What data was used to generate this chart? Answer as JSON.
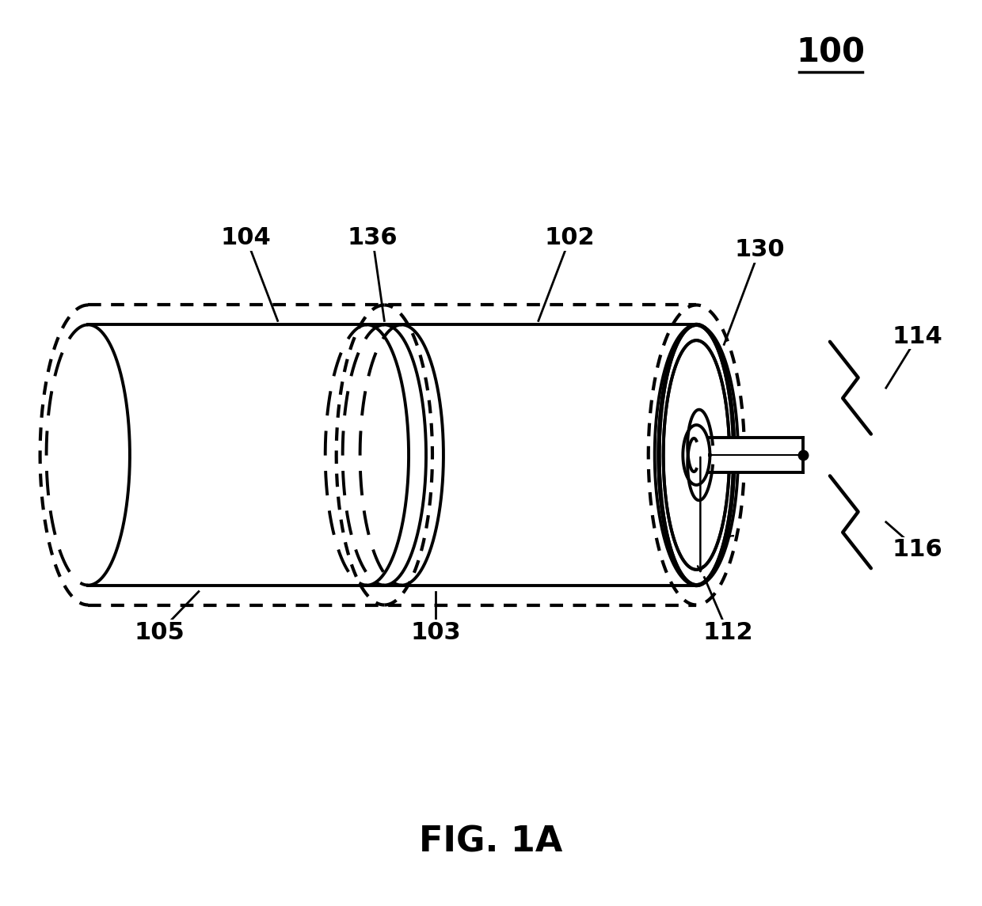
{
  "title": "FIG. 1A",
  "ref_number": "100",
  "background_color": "#ffffff",
  "fig_width": 12.4,
  "fig_height": 11.45,
  "lw_main": 2.8,
  "lw_dot": 3.0,
  "lw_thick": 3.2,
  "label_fontsize": 20,
  "title_fontsize": 32,
  "ref_fontsize": 28
}
